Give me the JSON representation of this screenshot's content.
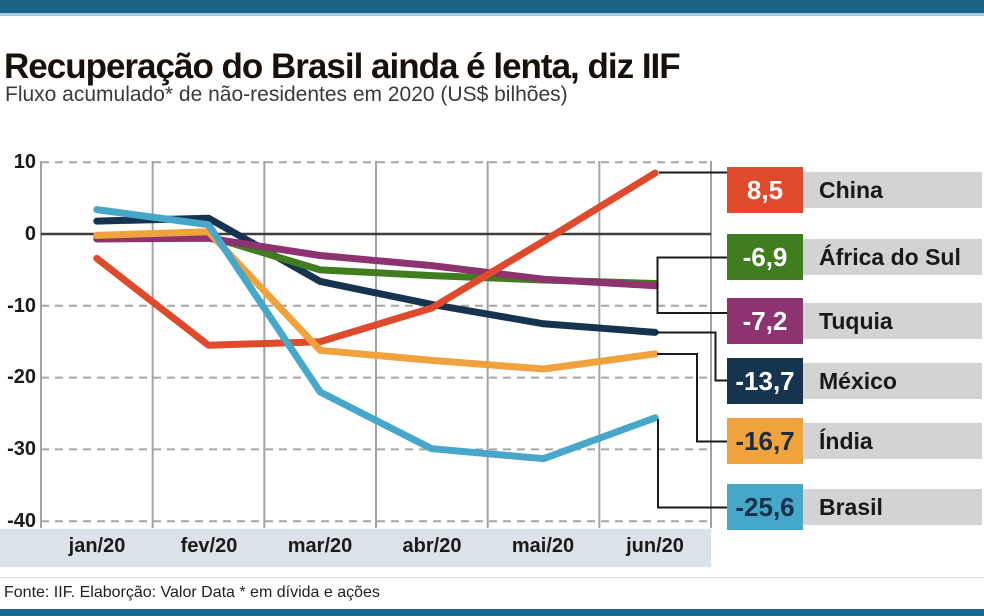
{
  "header": {
    "title": "Recuperação do Brasil ainda é lenta, diz IIF",
    "subtitle": "Fluxo acumulado* de não-residentes em 2020 (US$ bilhões)"
  },
  "chart_data": {
    "type": "line",
    "title": "Recuperação do Brasil ainda é lenta, diz IIF",
    "subtitle": "Fluxo acumulado* de não-residentes em 2020 (US$ bilhões)",
    "categories": [
      "jan/20",
      "fev/20",
      "mar/20",
      "abr/20",
      "mai/20",
      "jun/20"
    ],
    "ylim": [
      -40,
      10
    ],
    "yticks": [
      10,
      0,
      -10,
      -20,
      -30,
      -40
    ],
    "ytick_labels": [
      "10",
      "0",
      "-10",
      "-20",
      "-30",
      "-40"
    ],
    "grid": "horizontal dashed gray, vertical solid gray, solid dark zero line",
    "legend_position": "right",
    "series": [
      {
        "name": "China",
        "color": "#e04a2c",
        "end_label": "8,5",
        "values": [
          -3.4,
          -15.5,
          -15.0,
          -10.3,
          -1.0,
          8.5
        ]
      },
      {
        "name": "África do Sul",
        "color": "#3f7d1f",
        "end_label": "-6,9",
        "values": [
          -0.3,
          -0.3,
          -5.0,
          -5.8,
          -6.4,
          -6.9
        ]
      },
      {
        "name": "Tuquia",
        "color": "#8c3370",
        "end_label": "-7,2",
        "values": [
          -0.7,
          -0.6,
          -3.0,
          -4.4,
          -6.3,
          -7.2
        ]
      },
      {
        "name": "México",
        "color": "#16334f",
        "end_label": "-13,7",
        "values": [
          1.8,
          2.2,
          -6.6,
          -9.8,
          -12.5,
          -13.7
        ]
      },
      {
        "name": "Índia",
        "color": "#f0a23c",
        "end_label": "-16,7",
        "values": [
          -0.2,
          0.3,
          -16.2,
          -17.6,
          -18.8,
          -16.7
        ]
      },
      {
        "name": "Brasil",
        "color": "#47a7c9",
        "end_label": "-25,6",
        "values": [
          3.4,
          1.3,
          -22.0,
          -29.9,
          -31.3,
          -25.6
        ]
      }
    ]
  },
  "legend": {
    "items": [
      {
        "value": "8,5",
        "label": "China",
        "color": "#e04a2c",
        "value_color": "#ffffff"
      },
      {
        "value": "-6,9",
        "label": "África do Sul",
        "color": "#3f7d1f",
        "value_color": "#ffffff"
      },
      {
        "value": "-7,2",
        "label": "Tuquia",
        "color": "#8c3370",
        "value_color": "#ffffff"
      },
      {
        "value": "-13,7",
        "label": "México",
        "color": "#16334f",
        "value_color": "#ffffff"
      },
      {
        "value": "-16,7",
        "label": "Índia",
        "color": "#f0a23c",
        "value_color": "#1d2d44"
      },
      {
        "value": "-25,6",
        "label": "Brasil",
        "color": "#47a7c9",
        "value_color": "#16304d"
      }
    ]
  },
  "footer": {
    "text": "Fonte: IIF. Elaborção: Valor Data * em dívida e ações"
  },
  "colors": {
    "top_bar": "#1a6386",
    "top_strip": "#a8c9d8",
    "bottom_bar": "#15688a",
    "axis_band": "#dbe2ea",
    "legend_band": "#d3d3d3",
    "grid_vertical": "#a3a3a3",
    "grid_dashed": "#a6a6a6",
    "zero_line": "#3d3d3d",
    "connector": "#1a1a1a"
  }
}
